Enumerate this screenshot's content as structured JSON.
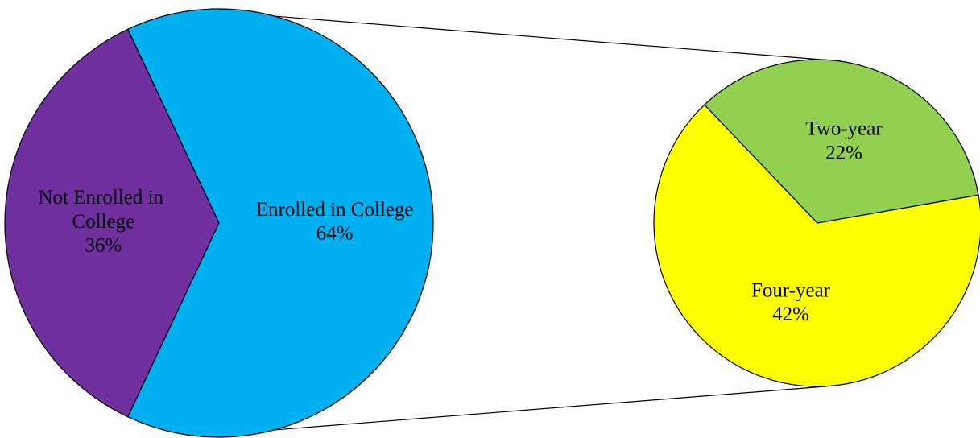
{
  "chart_data": [
    {
      "type": "pie",
      "categories": [
        "Not Enrolled in College",
        "Enrolled in College"
      ],
      "values": [
        36,
        64
      ],
      "value_labels": [
        "36%",
        "64%"
      ],
      "colors": [
        "#7030a0",
        "#00b0f0"
      ]
    },
    {
      "type": "pie",
      "categories": [
        "Four-year",
        "Two-year"
      ],
      "values": [
        42,
        22
      ],
      "value_labels": [
        "42%",
        "22%"
      ],
      "colors": [
        "#ffff00",
        "#92d050"
      ]
    }
  ]
}
